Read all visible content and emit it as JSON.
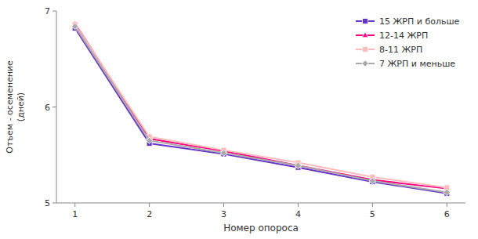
{
  "chart_data": {
    "type": "line",
    "x": [
      1,
      2,
      3,
      4,
      5,
      6
    ],
    "series": [
      {
        "name": "15 ЖРП и больше",
        "color": "#6633cc",
        "marker": "square",
        "values": [
          6.82,
          5.62,
          5.51,
          5.37,
          5.22,
          5.1
        ]
      },
      {
        "name": "12-14 ЖРП",
        "color": "#ff007f",
        "marker": "triangle",
        "values": [
          6.87,
          5.67,
          5.54,
          5.39,
          5.24,
          5.15
        ]
      },
      {
        "name": "8-11 ЖРП",
        "color": "#ffbbbb",
        "marker": "square",
        "values": [
          6.86,
          5.69,
          5.55,
          5.42,
          5.27,
          5.16
        ]
      },
      {
        "name": "7 ЖРП и меньше",
        "color": "#aaaaaa",
        "marker": "diamond",
        "values": [
          6.84,
          5.65,
          5.52,
          5.39,
          5.23,
          5.11
        ]
      }
    ],
    "xlabel": "Номер опороса",
    "ylabel": "Отъем - осеменение\n(дней)",
    "ylim": [
      5.0,
      7.0
    ],
    "yticks": [
      5,
      6,
      7
    ],
    "xlim": [
      0.75,
      6.25
    ],
    "xticks": [
      1,
      2,
      3,
      4,
      5,
      6
    ],
    "grid": false,
    "legend": "upper right"
  }
}
